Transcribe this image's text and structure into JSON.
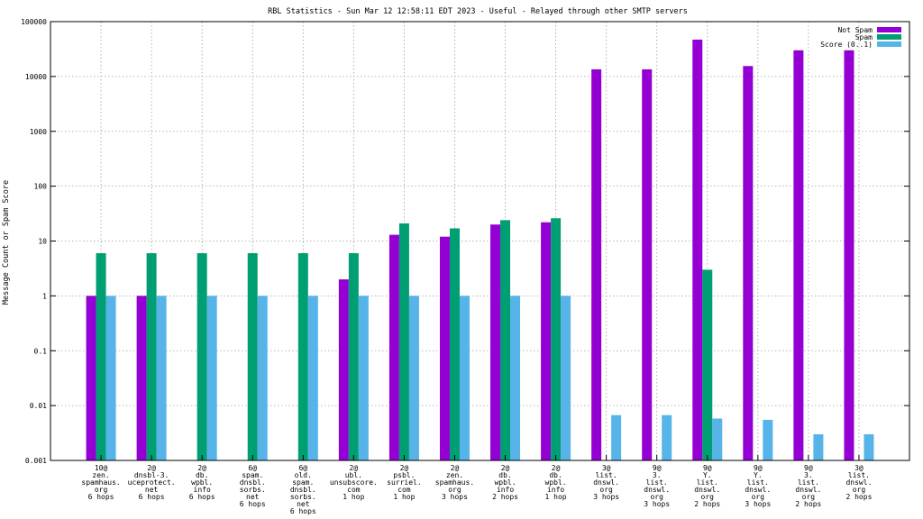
{
  "chart_data": {
    "type": "bar",
    "title": "RBL Statistics - Sun Mar 12 12:58:11 EDT 2023 - Useful - Relayed through other SMTP servers",
    "xlabel": "",
    "ylabel": "Message Count or Spam Score",
    "yscale": "log",
    "ylim": [
      0.001,
      100000
    ],
    "yticks": [
      "0.001",
      "0.01",
      "0.1",
      "1",
      "10",
      "100",
      "1000",
      "10000",
      "100000"
    ],
    "grid": true,
    "legend_position": "top-right",
    "categories": [
      [
        "10@",
        "zen.",
        "spamhaus.",
        "org",
        "6 hops"
      ],
      [
        "2@",
        "dnsbl-3.",
        "uceprotect.",
        "net",
        "6 hops"
      ],
      [
        "2@",
        "db.",
        "wpbl.",
        "info",
        "6 hops"
      ],
      [
        "6@",
        "spam.",
        "dnsbl.",
        "sorbs.",
        "net",
        "6 hops"
      ],
      [
        "6@",
        "old.",
        "spam.",
        "dnsbl.",
        "sorbs.",
        "net",
        "6 hops"
      ],
      [
        "2@",
        "ubl.",
        "unsubscore.",
        "com",
        "1 hop"
      ],
      [
        "2@",
        "psbl.",
        "surriel.",
        "com",
        "1 hop"
      ],
      [
        "2@",
        "zen.",
        "spamhaus.",
        "org",
        "3 hops"
      ],
      [
        "2@",
        "db.",
        "wpbl.",
        "info",
        "2 hops"
      ],
      [
        "2@",
        "db.",
        "wpbl.",
        "info",
        "1 hop"
      ],
      [
        "3@",
        "list.",
        "dnswl.",
        "org",
        "3 hops"
      ],
      [
        "9@",
        "3.",
        "list.",
        "dnswl.",
        "org",
        "3 hops"
      ],
      [
        "9@",
        "Y.",
        "list.",
        "dnswl.",
        "org",
        "2 hops"
      ],
      [
        "9@",
        "Y.",
        "list.",
        "dnswl.",
        "org",
        "3 hops"
      ],
      [
        "9@",
        "3.",
        "list.",
        "dnswl.",
        "org",
        "2 hops"
      ],
      [
        "3@",
        "list.",
        "dnswl.",
        "org",
        "2 hops"
      ]
    ],
    "series": [
      {
        "name": "Not Spam",
        "color": "#9400d3",
        "values": [
          1,
          1,
          null,
          null,
          null,
          2,
          13,
          12,
          20,
          22,
          13500,
          13500,
          47000,
          15500,
          30000,
          30000
        ]
      },
      {
        "name": "Spam",
        "color": "#009e73",
        "values": [
          6,
          6,
          6,
          6,
          6,
          6,
          21,
          17,
          24,
          26,
          null,
          null,
          3,
          null,
          null,
          null
        ]
      },
      {
        "name": "Score (0..1)",
        "color": "#56b4e9",
        "values": [
          1,
          1,
          1,
          1,
          1,
          1,
          1,
          1,
          1,
          1,
          0.0067,
          0.0067,
          0.0058,
          0.0055,
          0.003,
          0.003
        ]
      }
    ]
  }
}
